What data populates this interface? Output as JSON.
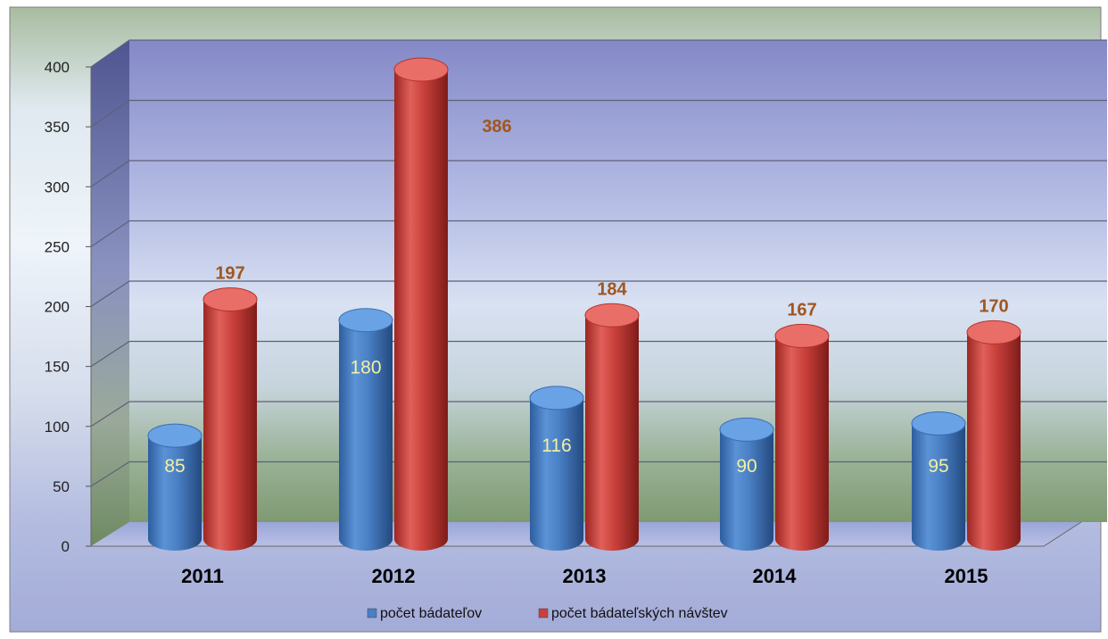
{
  "chart_data": {
    "type": "bar",
    "categories": [
      "2011",
      "2012",
      "2013",
      "2014",
      "2015"
    ],
    "series": [
      {
        "name": "počet bádateľov",
        "values": [
          85,
          180,
          116,
          90,
          95
        ],
        "color": "#4a7fc4"
      },
      {
        "name": "počet bádateľských návštev",
        "values": [
          197,
          386,
          184,
          167,
          170
        ],
        "color": "#c9403b"
      }
    ],
    "y_ticks": [
      "0",
      "50",
      "100",
      "150",
      "200",
      "250",
      "300",
      "350",
      "400"
    ],
    "ylim": [
      0,
      400
    ],
    "grid": true,
    "legend_position": "bottom",
    "style": "3d-cylinder",
    "label_colors": {
      "series_0": "#f3f0a0",
      "series_1": "#a0561f"
    }
  }
}
